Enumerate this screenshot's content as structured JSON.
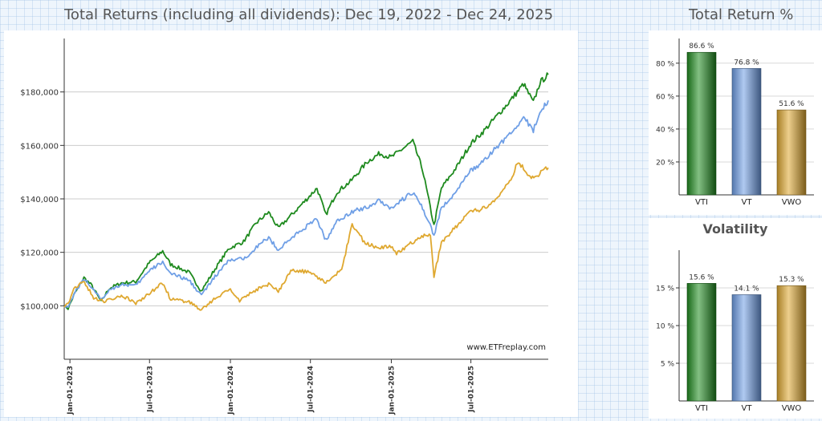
{
  "header": {
    "main_title": "Total Returns (including all dividends): Dec 19, 2022 - Dec 24, 2025",
    "side_title": "Total Return %"
  },
  "colors": {
    "VTI": "#1e8a1e",
    "VT": "#6f9fe6",
    "VWO": "#dfa830"
  },
  "chart_data": [
    {
      "type": "line",
      "title": "Total Returns (including all dividends): Dec 19, 2022 - Dec 24, 2025",
      "xlabel": "",
      "ylabel": "",
      "ylim": [
        80000,
        200000
      ],
      "yticks": [
        100000,
        120000,
        140000,
        160000,
        180000
      ],
      "ytick_labels": [
        "$100,000",
        "$120,000",
        "$140,000",
        "$160,000",
        "$180,000"
      ],
      "xlim": [
        "2022-12-19",
        "2025-12-24"
      ],
      "xticks": [
        "2023-01-01",
        "2023-07-01",
        "2024-01-01",
        "2024-07-01",
        "2025-01-01",
        "2025-07-01"
      ],
      "xtick_labels": [
        "Jan-01-2023",
        "Jul-01-2023",
        "Jan-01-2024",
        "Jul-01-2024",
        "Jan-01-2025",
        "Jul-01-2025"
      ],
      "annotation": "www.ETFreplay.com",
      "series": [
        {
          "name": "VTI",
          "points": [
            [
              "2022-12-19",
              100000
            ],
            [
              "2022-12-28",
              99000
            ],
            [
              "2023-01-10",
              104000
            ],
            [
              "2023-02-02",
              110500
            ],
            [
              "2023-02-20",
              107500
            ],
            [
              "2023-03-13",
              101500
            ],
            [
              "2023-03-31",
              106500
            ],
            [
              "2023-04-28",
              108500
            ],
            [
              "2023-05-31",
              109000
            ],
            [
              "2023-06-30",
              116000
            ],
            [
              "2023-07-31",
              120500
            ],
            [
              "2023-08-18",
              115500
            ],
            [
              "2023-09-29",
              112500
            ],
            [
              "2023-10-27",
              105500
            ],
            [
              "2023-11-30",
              114500
            ],
            [
              "2023-12-29",
              121500
            ],
            [
              "2024-01-31",
              124000
            ],
            [
              "2024-02-29",
              131000
            ],
            [
              "2024-03-28",
              135000
            ],
            [
              "2024-04-19",
              129000
            ],
            [
              "2024-05-31",
              136000
            ],
            [
              "2024-07-16",
              144000
            ],
            [
              "2024-08-05",
              134000
            ],
            [
              "2024-08-30",
              142500
            ],
            [
              "2024-09-30",
              146500
            ],
            [
              "2024-11-08",
              154000
            ],
            [
              "2024-12-06",
              157000
            ],
            [
              "2024-12-31",
              155500
            ],
            [
              "2025-02-19",
              161500
            ],
            [
              "2025-03-13",
              151000
            ],
            [
              "2025-04-08",
              130000
            ],
            [
              "2025-04-25",
              144000
            ],
            [
              "2025-05-30",
              152000
            ],
            [
              "2025-06-30",
              160500
            ],
            [
              "2025-07-31",
              165500
            ],
            [
              "2025-08-29",
              171000
            ],
            [
              "2025-09-30",
              177000
            ],
            [
              "2025-10-29",
              183000
            ],
            [
              "2025-11-20",
              176000
            ],
            [
              "2025-12-05",
              183500
            ],
            [
              "2025-12-24",
              186500
            ]
          ]
        },
        {
          "name": "VT",
          "points": [
            [
              "2022-12-19",
              100000
            ],
            [
              "2022-12-28",
              99500
            ],
            [
              "2023-01-10",
              104500
            ],
            [
              "2023-02-02",
              110000
            ],
            [
              "2023-02-20",
              107000
            ],
            [
              "2023-03-13",
              102000
            ],
            [
              "2023-03-31",
              106000
            ],
            [
              "2023-04-28",
              108000
            ],
            [
              "2023-05-31",
              107500
            ],
            [
              "2023-06-30",
              113000
            ],
            [
              "2023-07-31",
              116500
            ],
            [
              "2023-08-18",
              112000
            ],
            [
              "2023-09-29",
              109500
            ],
            [
              "2023-10-27",
              104000
            ],
            [
              "2023-11-30",
              111500
            ],
            [
              "2023-12-29",
              117000
            ],
            [
              "2024-01-31",
              117500
            ],
            [
              "2024-02-29",
              122000
            ],
            [
              "2024-03-28",
              125500
            ],
            [
              "2024-04-19",
              121000
            ],
            [
              "2024-05-31",
              127000
            ],
            [
              "2024-07-16",
              132500
            ],
            [
              "2024-08-05",
              124500
            ],
            [
              "2024-08-30",
              131500
            ],
            [
              "2024-09-30",
              135000
            ],
            [
              "2024-11-08",
              137000
            ],
            [
              "2024-12-06",
              139500
            ],
            [
              "2024-12-31",
              136500
            ],
            [
              "2025-02-19",
              142500
            ],
            [
              "2025-03-13",
              136500
            ],
            [
              "2025-04-08",
              126500
            ],
            [
              "2025-04-25",
              136500
            ],
            [
              "2025-05-30",
              143000
            ],
            [
              "2025-06-30",
              150500
            ],
            [
              "2025-07-31",
              154000
            ],
            [
              "2025-08-29",
              159500
            ],
            [
              "2025-09-30",
              164500
            ],
            [
              "2025-10-29",
              170500
            ],
            [
              "2025-11-20",
              165500
            ],
            [
              "2025-12-05",
              172500
            ],
            [
              "2025-12-24",
              176800
            ]
          ]
        },
        {
          "name": "VWO",
          "points": [
            [
              "2022-12-19",
              100000
            ],
            [
              "2022-12-28",
              100500
            ],
            [
              "2023-01-10",
              106000
            ],
            [
              "2023-01-31",
              109500
            ],
            [
              "2023-02-24",
              103000
            ],
            [
              "2023-03-20",
              101500
            ],
            [
              "2023-04-28",
              104000
            ],
            [
              "2023-05-31",
              101000
            ],
            [
              "2023-06-30",
              104500
            ],
            [
              "2023-07-31",
              108500
            ],
            [
              "2023-08-18",
              102500
            ],
            [
              "2023-09-29",
              101500
            ],
            [
              "2023-10-27",
              98500
            ],
            [
              "2023-11-30",
              103000
            ],
            [
              "2023-12-29",
              106500
            ],
            [
              "2024-01-22",
              102000
            ],
            [
              "2024-02-29",
              106000
            ],
            [
              "2024-03-28",
              108000
            ],
            [
              "2024-04-19",
              105500
            ],
            [
              "2024-05-20",
              113500
            ],
            [
              "2024-06-28",
              112500
            ],
            [
              "2024-08-05",
              108500
            ],
            [
              "2024-09-10",
              113500
            ],
            [
              "2024-10-04",
              130500
            ],
            [
              "2024-10-31",
              124000
            ],
            [
              "2024-11-29",
              121500
            ],
            [
              "2024-12-31",
              122500
            ],
            [
              "2025-01-13",
              119500
            ],
            [
              "2025-02-28",
              125000
            ],
            [
              "2025-03-31",
              127000
            ],
            [
              "2025-04-08",
              111000
            ],
            [
              "2025-04-25",
              123500
            ],
            [
              "2025-05-30",
              130000
            ],
            [
              "2025-06-30",
              135000
            ],
            [
              "2025-07-31",
              136500
            ],
            [
              "2025-08-29",
              140500
            ],
            [
              "2025-09-30",
              147500
            ],
            [
              "2025-10-17",
              154000
            ],
            [
              "2025-11-07",
              149500
            ],
            [
              "2025-11-21",
              147500
            ],
            [
              "2025-12-10",
              150500
            ],
            [
              "2025-12-24",
              151600
            ]
          ]
        }
      ]
    },
    {
      "type": "bar",
      "title": "Total Return %",
      "categories": [
        "VTI",
        "VT",
        "VWO"
      ],
      "values": [
        86.6,
        76.8,
        51.6
      ],
      "value_labels": [
        "86.6 %",
        "76.8 %",
        "51.6 %"
      ],
      "ylim": [
        0,
        95
      ],
      "yticks": [
        20,
        40,
        60,
        80
      ],
      "ytick_labels": [
        "20 %",
        "40 %",
        "60 %",
        "80 %"
      ]
    },
    {
      "type": "bar",
      "title": "Volatility",
      "categories": [
        "VTI",
        "VT",
        "VWO"
      ],
      "values": [
        15.6,
        14.1,
        15.3
      ],
      "value_labels": [
        "15.6 %",
        "14.1 %",
        "15.3 %"
      ],
      "ylim": [
        0,
        20
      ],
      "yticks": [
        5,
        10,
        15
      ],
      "ytick_labels": [
        "5 %",
        "10 %",
        "15 %"
      ]
    }
  ]
}
